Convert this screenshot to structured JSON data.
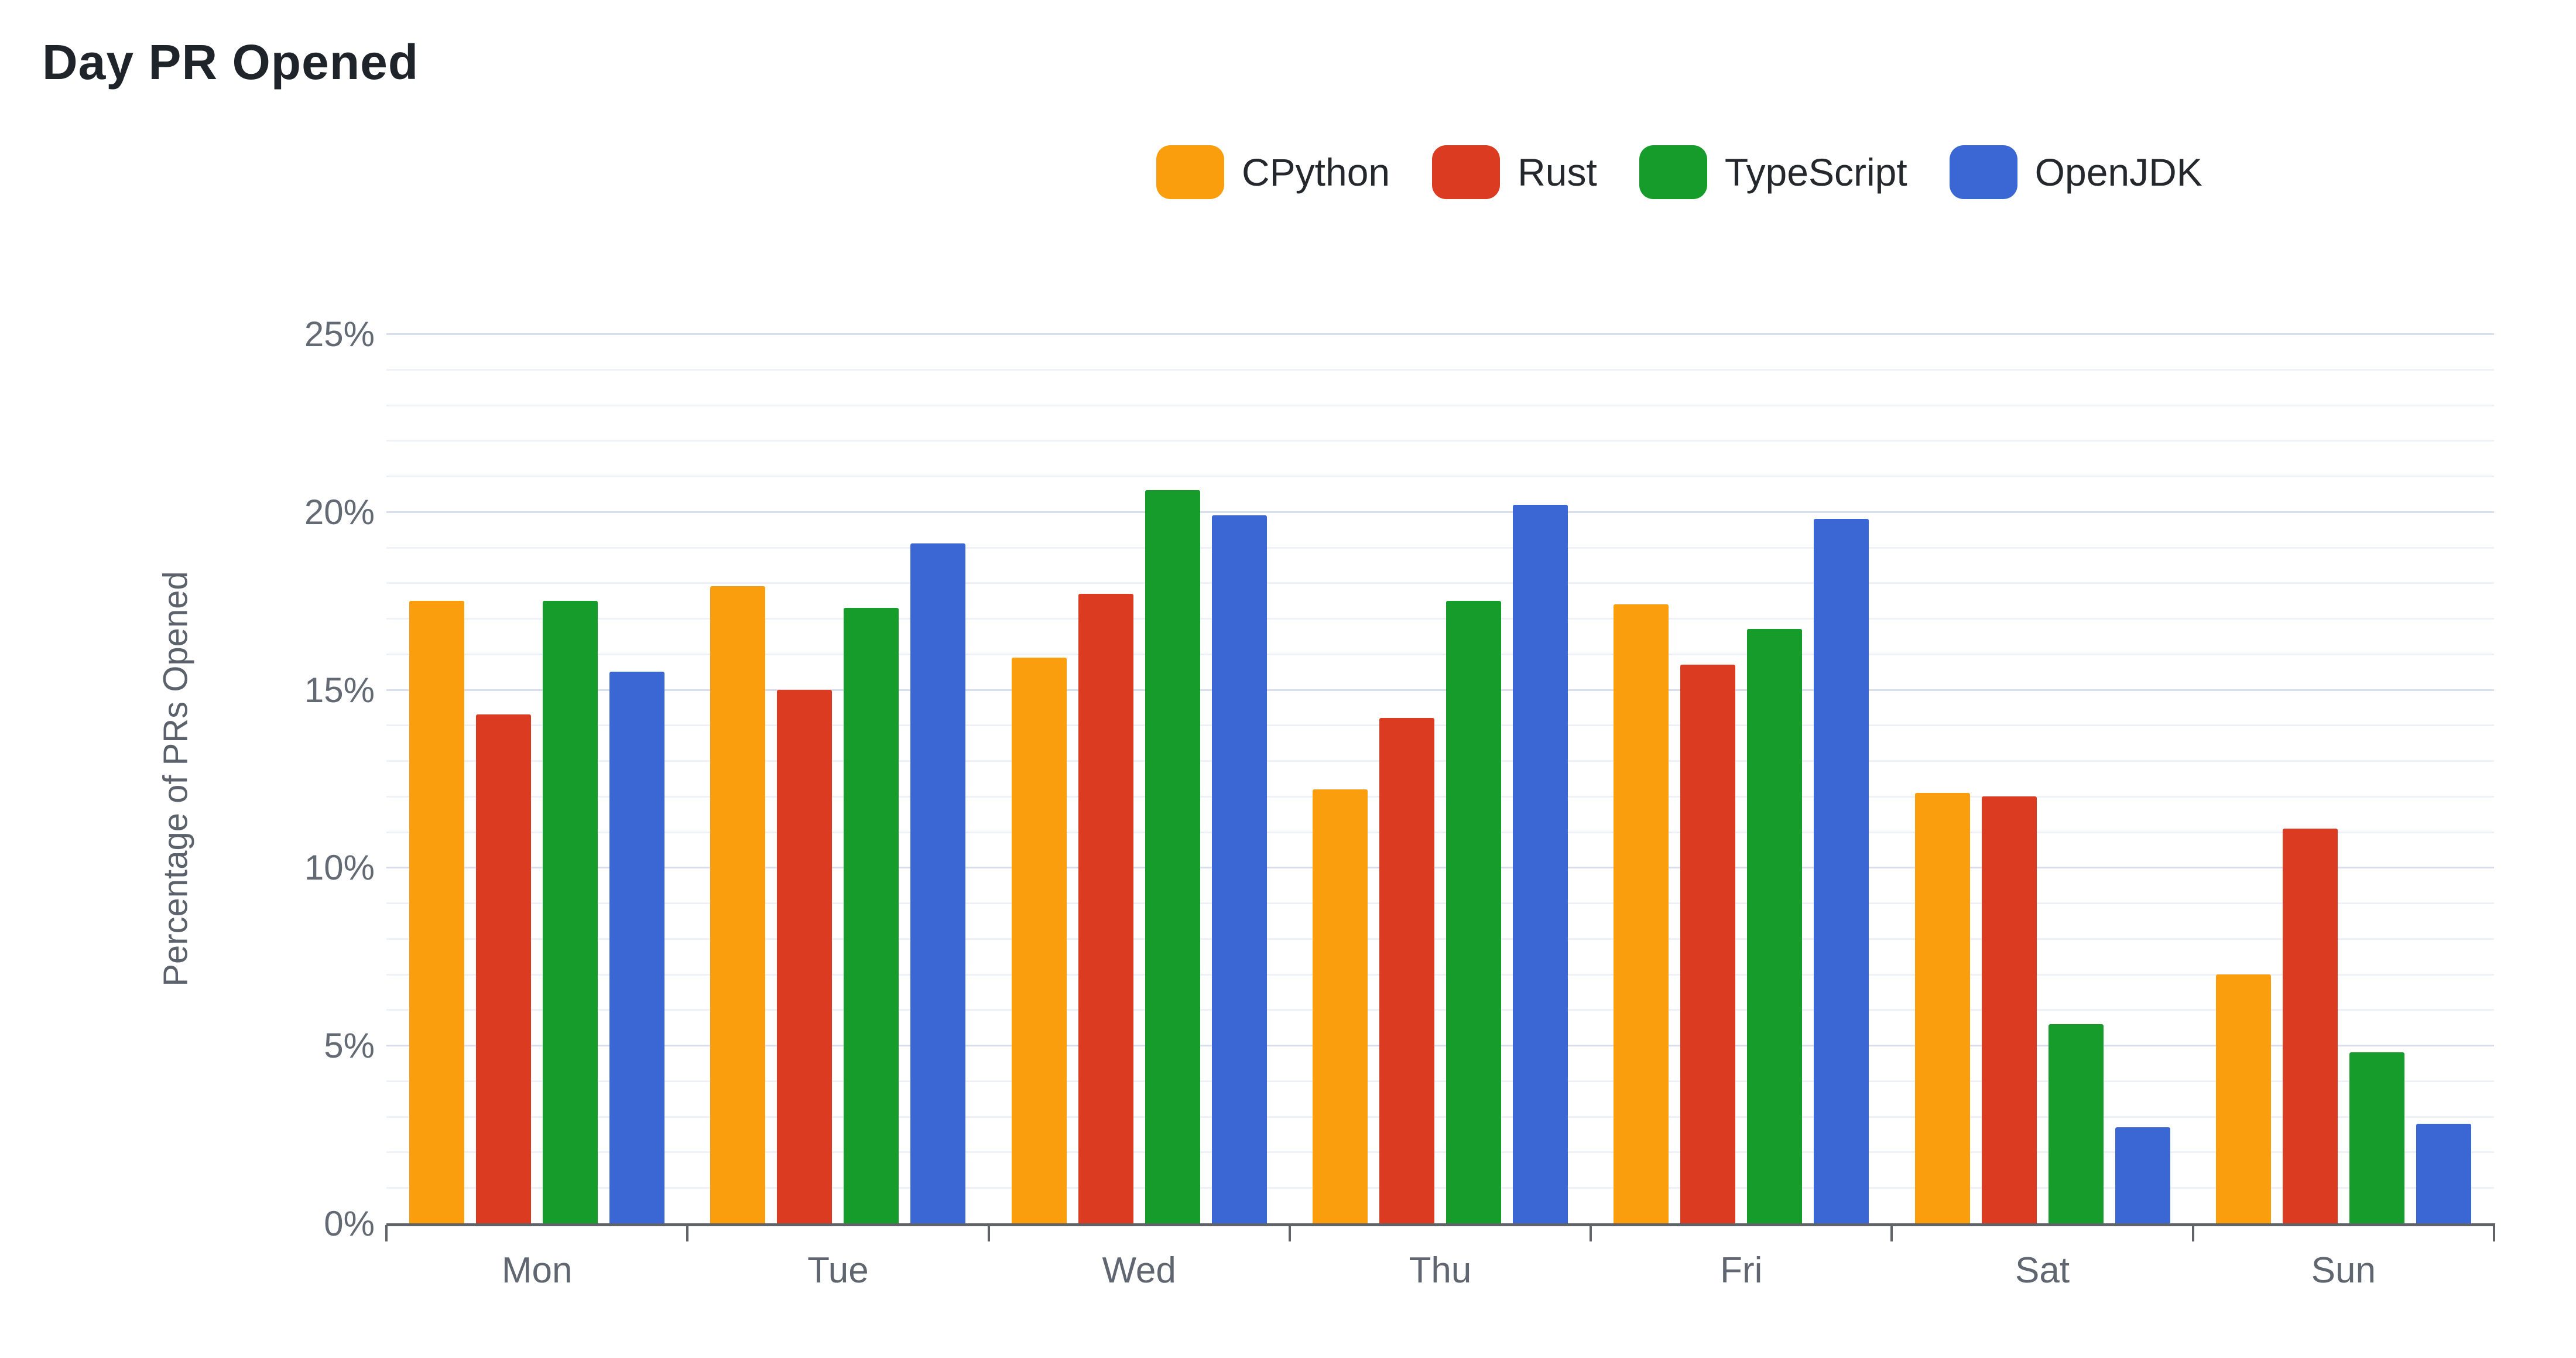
{
  "header": {
    "title": "Day PR Opened"
  },
  "chart_data": {
    "type": "bar",
    "title": "Day PR Opened",
    "categories": [
      "Mon",
      "Tue",
      "Wed",
      "Thu",
      "Fri",
      "Sat",
      "Sun"
    ],
    "series": [
      {
        "name": "CPython",
        "color": "#fa9e0d",
        "values": [
          17.5,
          17.9,
          15.9,
          12.2,
          17.4,
          12.1,
          7.0
        ]
      },
      {
        "name": "Rust",
        "color": "#da3b21",
        "values": [
          14.3,
          15.0,
          17.7,
          14.2,
          15.7,
          12.0,
          11.1
        ]
      },
      {
        "name": "TypeScript",
        "color": "#169c2b",
        "values": [
          17.5,
          17.3,
          20.6,
          17.5,
          16.7,
          5.6,
          4.8
        ]
      },
      {
        "name": "OpenJDK",
        "color": "#3a67d3",
        "values": [
          15.5,
          19.1,
          19.9,
          20.2,
          19.8,
          2.7,
          2.8
        ]
      }
    ],
    "xlabel": "",
    "ylabel": "Percentage of PRs Opened",
    "ylim": [
      0,
      25
    ],
    "ytick_labels": [
      "0%",
      "5%",
      "10%",
      "15%",
      "20%",
      "25%"
    ],
    "ytick_step_major": 5,
    "ytick_step_minor": 1,
    "grid": "horizontal, minor every 1%, major every 5%",
    "legend_position": "top",
    "colors": {
      "title_text": "#1f242b",
      "axis_text": "#646a73",
      "major_gridline": "#d8deed",
      "minor_gridline": "#eef1f8",
      "axis_baseline": "#606468",
      "background": "#ffffff"
    }
  }
}
